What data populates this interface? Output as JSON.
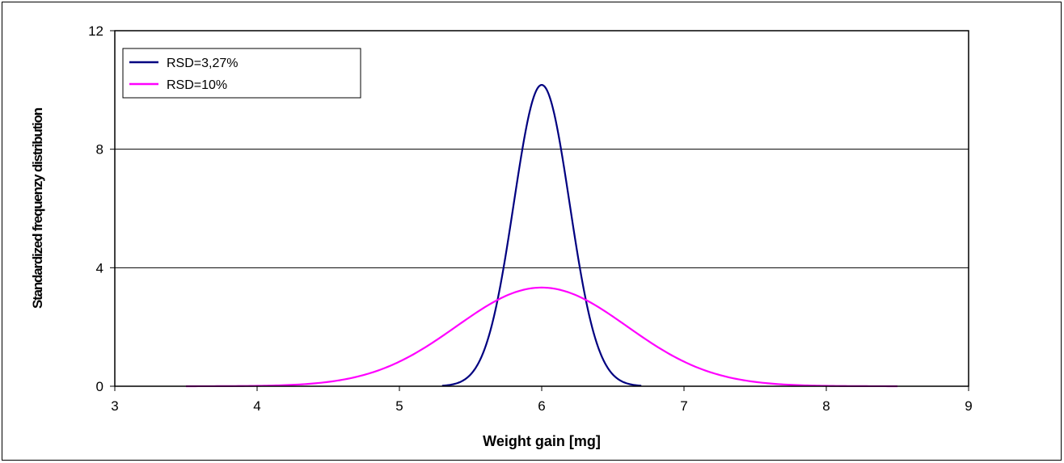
{
  "chart_data": {
    "type": "line",
    "title": "",
    "xlabel": "Weight gain [mg]",
    "ylabel": "Standardized frequenzy distribution",
    "xlim": [
      3,
      9
    ],
    "ylim": [
      0,
      12
    ],
    "xticks": [
      "3",
      "4",
      "5",
      "6",
      "7",
      "8",
      "9"
    ],
    "yticks": [
      "0",
      "4",
      "8",
      "12"
    ],
    "grid": "horizontal",
    "legend_position": "top-left",
    "series": [
      {
        "name": "RSD=3,27%",
        "color": "#000080",
        "mean": 6,
        "sd": 0.1962,
        "x_range": [
          5.3,
          6.7
        ],
        "peak": 10.17
      },
      {
        "name": "RSD=10%",
        "color": "#ff00ff",
        "mean": 6,
        "sd": 0.6,
        "x_range": [
          3.5,
          8.5
        ],
        "peak": 3.33
      }
    ]
  }
}
